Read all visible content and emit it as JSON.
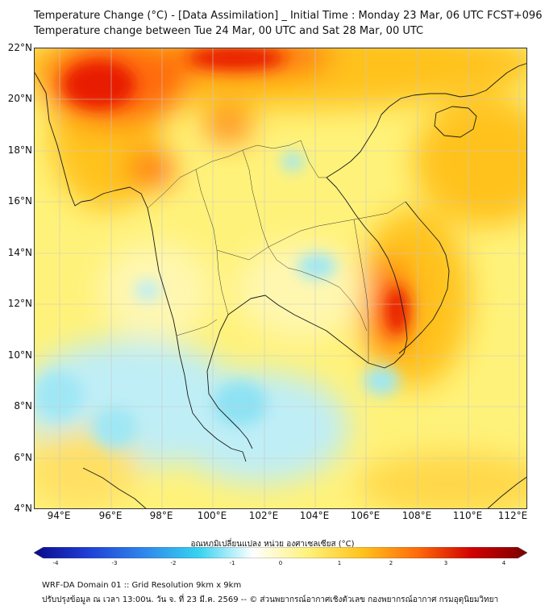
{
  "title": {
    "line1": "Temperature Change (°C) - [Data Assimilation] _ Initial Time : Monday 23 Mar, 06 UTC FCST+096",
    "line2": "Temperature change between Tue 24 Mar, 00 UTC and Sat 28 Mar, 00 UTC"
  },
  "axes": {
    "lat_labels": [
      "22°N",
      "20°N",
      "18°N",
      "16°N",
      "14°N",
      "12°N",
      "10°N",
      "8°N",
      "6°N",
      "4°N"
    ],
    "lon_labels": [
      "94°E",
      "96°E",
      "98°E",
      "100°E",
      "102°E",
      "104°E",
      "106°E",
      "108°E",
      "110°E",
      "112°E"
    ]
  },
  "colorbar": {
    "title": "อุณหภูมิเปลี่ยนแปลง หน่วย องศาเซลเซียส (°C)",
    "min": -4,
    "max": 4,
    "ticks": [
      "-4",
      "-3",
      "-2",
      "-1",
      "0",
      "1",
      "2",
      "3",
      "4"
    ],
    "colors": [
      "#0a0a8c",
      "#1f3fd6",
      "#2f86ea",
      "#36d2f0",
      "#ffffff",
      "#fff27a",
      "#ffc21c",
      "#ff6a0a",
      "#d00000",
      "#7a0000"
    ]
  },
  "footer": {
    "line1": "WRF-DA Domain 01 :: Grid Resolution 9km x 9km",
    "line2": "ปรับปรุงข้อมูล ณ เวลา 13:00น. วัน จ. ที่ 23 มี.ค. 2569 -- © ส่วนพยากรณ์อากาศเชิงตัวเลข กองพยากรณ์อากาศ กรมอุตุนิยมวิทยา"
  }
}
